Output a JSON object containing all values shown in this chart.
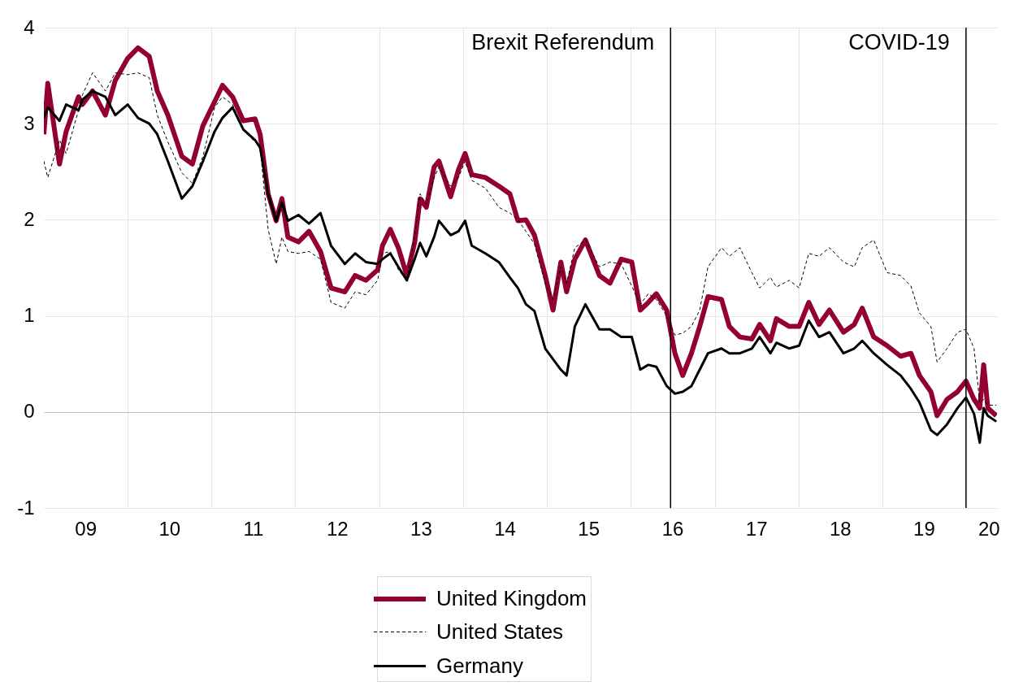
{
  "chart_data": {
    "type": "line",
    "x": [
      "2009-01-01",
      "2009-01-18",
      "2009-03-10",
      "2009-04-08",
      "2009-06-01",
      "2009-06-18",
      "2009-08-01",
      "2009-09-26",
      "2009-11-08",
      "2010-01-01",
      "2010-02-15",
      "2010-04-05",
      "2010-05-10",
      "2010-06-25",
      "2010-08-25",
      "2010-10-10",
      "2010-11-25",
      "2011-01-15",
      "2011-02-18",
      "2011-04-03",
      "2011-05-20",
      "2011-07-10",
      "2011-08-01",
      "2011-09-05",
      "2011-10-10",
      "2011-11-04",
      "2011-11-30",
      "2012-01-15",
      "2012-03-01",
      "2012-04-20",
      "2012-06-05",
      "2012-08-04",
      "2012-09-18",
      "2012-11-04",
      "2012-12-25",
      "2013-01-15",
      "2013-02-18",
      "2013-03-25",
      "2013-05-01",
      "2013-06-04",
      "2013-06-28",
      "2013-07-25",
      "2013-08-28",
      "2013-09-18",
      "2013-11-08",
      "2013-12-12",
      "2014-01-10",
      "2014-02-08",
      "2014-04-08",
      "2014-06-06",
      "2014-07-24",
      "2014-08-28",
      "2014-10-02",
      "2014-11-08",
      "2014-12-25",
      "2015-01-28",
      "2015-03-03",
      "2015-03-28",
      "2015-05-03",
      "2015-06-18",
      "2015-08-18",
      "2015-10-03",
      "2015-11-21",
      "2016-01-06",
      "2016-02-12",
      "2016-03-18",
      "2016-04-22",
      "2016-06-06",
      "2016-07-12",
      "2016-08-15",
      "2016-09-22",
      "2016-10-28",
      "2016-12-03",
      "2017-01-31",
      "2017-03-06",
      "2017-04-21",
      "2017-06-12",
      "2017-07-16",
      "2017-09-01",
      "2017-09-27",
      "2017-11-22",
      "2018-01-04",
      "2018-02-15",
      "2018-04-01",
      "2018-05-16",
      "2018-07-16",
      "2018-09-01",
      "2018-10-06",
      "2018-11-25",
      "2019-01-22",
      "2019-03-22",
      "2019-05-06",
      "2019-06-12",
      "2019-08-01",
      "2019-08-28",
      "2019-10-10",
      "2019-11-25",
      "2020-01-01",
      "2020-02-05",
      "2020-03-01",
      "2020-03-18",
      "2020-04-05",
      "2020-05-12"
    ],
    "series": [
      {
        "name": "United Kingdom",
        "color": "#930031",
        "line_style": "solid",
        "values": [
          2.89,
          3.42,
          2.58,
          2.92,
          3.28,
          3.2,
          3.34,
          3.09,
          3.45,
          3.68,
          3.79,
          3.7,
          3.34,
          3.09,
          2.66,
          2.58,
          2.98,
          3.23,
          3.4,
          3.28,
          3.03,
          3.05,
          2.89,
          2.27,
          1.99,
          2.22,
          1.82,
          1.77,
          1.88,
          1.67,
          1.29,
          1.25,
          1.42,
          1.37,
          1.48,
          1.73,
          1.9,
          1.71,
          1.42,
          1.76,
          2.22,
          2.13,
          2.55,
          2.61,
          2.24,
          2.52,
          2.69,
          2.47,
          2.44,
          2.35,
          2.27,
          1.99,
          2.0,
          1.84,
          1.42,
          1.06,
          1.56,
          1.25,
          1.59,
          1.79,
          1.42,
          1.34,
          1.59,
          1.56,
          1.06,
          1.14,
          1.23,
          1.06,
          0.61,
          0.38,
          0.61,
          0.89,
          1.2,
          1.17,
          0.89,
          0.78,
          0.76,
          0.91,
          0.74,
          0.97,
          0.89,
          0.89,
          1.14,
          0.91,
          1.06,
          0.83,
          0.91,
          1.08,
          0.78,
          0.69,
          0.58,
          0.61,
          0.38,
          0.21,
          -0.04,
          0.13,
          0.21,
          0.32,
          0.13,
          0.04,
          0.49,
          0.04,
          -0.04
        ]
      },
      {
        "name": "United States",
        "color": "#000000",
        "line_style": "dashed",
        "values": [
          2.61,
          2.44,
          2.83,
          2.69,
          3.14,
          3.3,
          3.53,
          3.34,
          3.53,
          3.51,
          3.53,
          3.48,
          3.09,
          2.81,
          2.49,
          2.38,
          2.66,
          3.17,
          3.28,
          3.2,
          2.94,
          2.81,
          2.75,
          1.9,
          1.54,
          1.82,
          1.67,
          1.65,
          1.67,
          1.59,
          1.14,
          1.08,
          1.25,
          1.22,
          1.37,
          1.65,
          1.67,
          1.48,
          1.37,
          1.82,
          2.27,
          2.16,
          2.44,
          2.55,
          2.35,
          2.44,
          2.61,
          2.41,
          2.33,
          2.13,
          2.07,
          2.0,
          1.88,
          1.75,
          1.34,
          1.17,
          1.51,
          1.34,
          1.71,
          1.79,
          1.51,
          1.56,
          1.54,
          1.31,
          1.12,
          1.23,
          1.17,
          1.0,
          0.8,
          0.82,
          0.89,
          1.06,
          1.51,
          1.71,
          1.62,
          1.71,
          1.45,
          1.29,
          1.4,
          1.3,
          1.37,
          1.29,
          1.65,
          1.62,
          1.71,
          1.56,
          1.51,
          1.71,
          1.79,
          1.45,
          1.42,
          1.31,
          1.03,
          0.89,
          0.52,
          0.66,
          0.83,
          0.86,
          0.66,
          0.1,
          0.13,
          0.07,
          0.07
        ]
      },
      {
        "name": "Germany",
        "color": "#000000",
        "line_style": "solid",
        "values": [
          3.06,
          3.17,
          3.03,
          3.2,
          3.14,
          3.25,
          3.34,
          3.28,
          3.09,
          3.2,
          3.06,
          3.0,
          2.89,
          2.61,
          2.22,
          2.35,
          2.61,
          2.92,
          3.06,
          3.17,
          2.94,
          2.83,
          2.75,
          2.27,
          1.99,
          2.18,
          1.99,
          2.05,
          1.96,
          2.07,
          1.73,
          1.54,
          1.65,
          1.56,
          1.54,
          1.59,
          1.65,
          1.51,
          1.37,
          1.59,
          1.76,
          1.62,
          1.82,
          1.99,
          1.84,
          1.88,
          1.99,
          1.73,
          1.65,
          1.56,
          1.4,
          1.29,
          1.12,
          1.05,
          0.66,
          0.55,
          0.44,
          0.38,
          0.89,
          1.12,
          0.86,
          0.86,
          0.78,
          0.78,
          0.44,
          0.49,
          0.47,
          0.27,
          0.19,
          0.21,
          0.27,
          0.44,
          0.61,
          0.66,
          0.61,
          0.61,
          0.66,
          0.78,
          0.61,
          0.72,
          0.66,
          0.69,
          0.95,
          0.78,
          0.83,
          0.61,
          0.66,
          0.74,
          0.61,
          0.49,
          0.38,
          0.24,
          0.1,
          -0.19,
          -0.24,
          -0.13,
          0.04,
          0.15,
          -0.02,
          -0.32,
          0.04,
          -0.04,
          -0.1
        ]
      }
    ],
    "xlim": [
      "2009-01-01",
      "2020-05-15"
    ],
    "xticks": [
      {
        "value": "2009-07-01",
        "label": "09"
      },
      {
        "value": "2010-01-01",
        "label": null
      },
      {
        "value": "2010-07-01",
        "label": "10"
      },
      {
        "value": "2011-01-01",
        "label": null
      },
      {
        "value": "2011-07-01",
        "label": "11"
      },
      {
        "value": "2012-01-01",
        "label": null
      },
      {
        "value": "2012-07-01",
        "label": "12"
      },
      {
        "value": "2013-01-01",
        "label": null
      },
      {
        "value": "2013-07-01",
        "label": "13"
      },
      {
        "value": "2014-01-01",
        "label": null
      },
      {
        "value": "2014-07-01",
        "label": "14"
      },
      {
        "value": "2015-01-01",
        "label": null
      },
      {
        "value": "2015-07-01",
        "label": "15"
      },
      {
        "value": "2016-01-01",
        "label": null
      },
      {
        "value": "2016-07-01",
        "label": "16"
      },
      {
        "value": "2017-01-01",
        "label": null
      },
      {
        "value": "2017-07-01",
        "label": "17"
      },
      {
        "value": "2018-01-01",
        "label": null
      },
      {
        "value": "2018-07-01",
        "label": "18"
      },
      {
        "value": "2019-01-01",
        "label": null
      },
      {
        "value": "2019-07-01",
        "label": "19"
      },
      {
        "value": "2020-04-09",
        "label": "20"
      }
    ],
    "ylim": [
      -1,
      4
    ],
    "yticks": [
      -1,
      0,
      1,
      2,
      3,
      4
    ],
    "grid": true,
    "legend": "bottom",
    "ref_lines": [
      {
        "axis": "x",
        "value": "2016-06-23",
        "label": "Brexit Referendum",
        "color": "#000000"
      },
      {
        "axis": "x",
        "value": "2020-01-01",
        "label": "COVID-19",
        "color": "#000000"
      }
    ]
  }
}
